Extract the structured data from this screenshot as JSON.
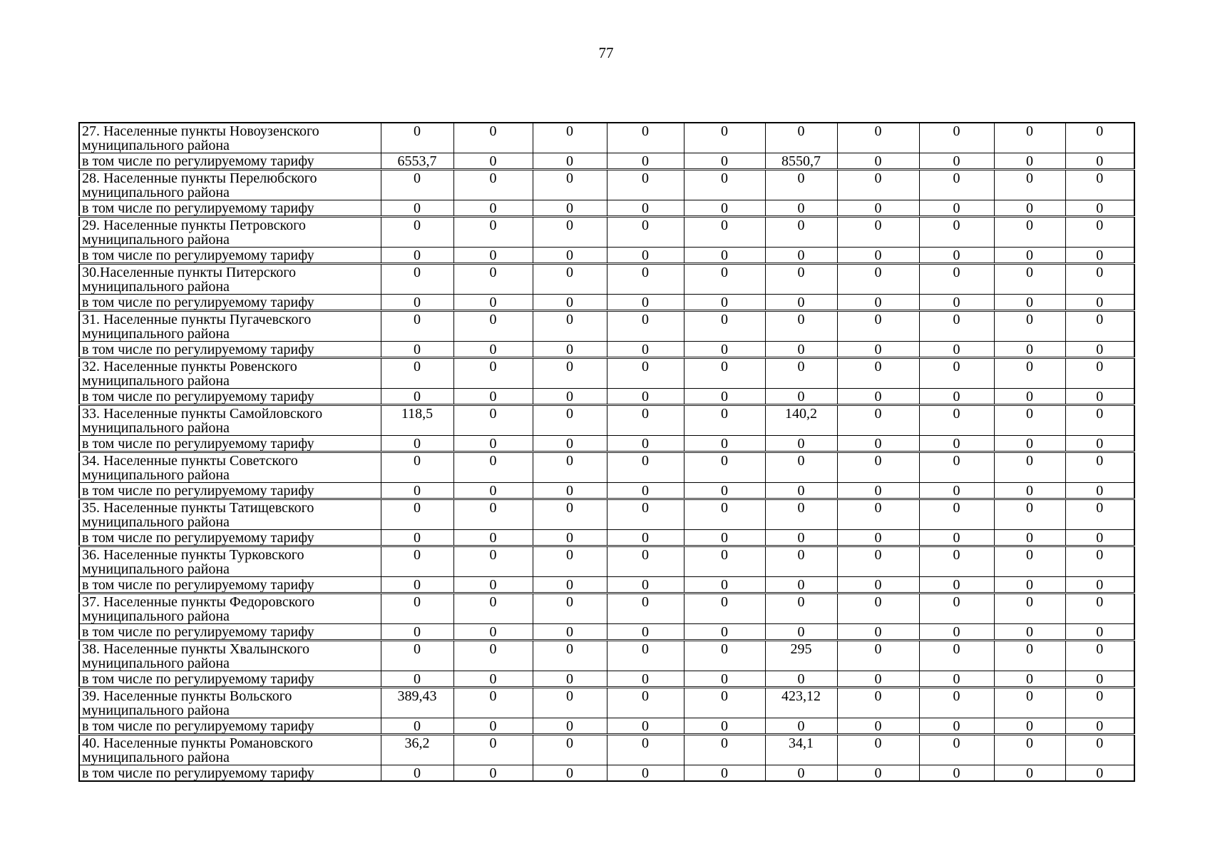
{
  "page": {
    "number": "77"
  },
  "table": {
    "columns_count": 10,
    "rows": [
      {
        "type": "district",
        "label": "27. Населенные пункты Новоузенского муниципального района",
        "values": [
          "0",
          "0",
          "0",
          "0",
          "0",
          "0",
          "0",
          "0",
          "0",
          "0"
        ]
      },
      {
        "type": "tariff",
        "label": "в том числе по регулируемому тарифу",
        "values": [
          "6553,7",
          "0",
          "0",
          "0",
          "0",
          "8550,7",
          "0",
          "0",
          "0",
          "0"
        ]
      },
      {
        "type": "district",
        "label": "28. Населенные пункты Перелюбского муниципального района",
        "values": [
          "0",
          "0",
          "0",
          "0",
          "0",
          "0",
          "0",
          "0",
          "0",
          "0"
        ]
      },
      {
        "type": "tariff",
        "label": "в том числе по регулируемому тарифу",
        "values": [
          "0",
          "0",
          "0",
          "0",
          "0",
          "0",
          "0",
          "0",
          "0",
          "0"
        ]
      },
      {
        "type": "district",
        "label": "29. Населенные пункты Петровского муниципального района",
        "values": [
          "0",
          "0",
          "0",
          "0",
          "0",
          "0",
          "0",
          "0",
          "0",
          "0"
        ]
      },
      {
        "type": "tariff",
        "label": "в том числе по регулируемому тарифу",
        "values": [
          "0",
          "0",
          "0",
          "0",
          "0",
          "0",
          "0",
          "0",
          "0",
          "0"
        ]
      },
      {
        "type": "district",
        "label": "30.Населенные пункты Питерского муниципального района",
        "values": [
          "0",
          "0",
          "0",
          "0",
          "0",
          "0",
          "0",
          "0",
          "0",
          "0"
        ]
      },
      {
        "type": "tariff",
        "label": "в том числе по регулируемому тарифу",
        "values": [
          "0",
          "0",
          "0",
          "0",
          "0",
          "0",
          "0",
          "0",
          "0",
          "0"
        ]
      },
      {
        "type": "district",
        "label": "31. Населенные пункты Пугачевского муниципального района",
        "values": [
          "0",
          "0",
          "0",
          "0",
          "0",
          "0",
          "0",
          "0",
          "0",
          "0"
        ]
      },
      {
        "type": "tariff",
        "label": "в том числе по регулируемому тарифу",
        "values": [
          "0",
          "0",
          "0",
          "0",
          "0",
          "0",
          "0",
          "0",
          "0",
          "0"
        ]
      },
      {
        "type": "district",
        "label": "32. Населенные пункты Ровенского муниципального района",
        "values": [
          "0",
          "0",
          "0",
          "0",
          "0",
          "0",
          "0",
          "0",
          "0",
          "0"
        ]
      },
      {
        "type": "tariff",
        "label": "в том числе по регулируемому тарифу",
        "values": [
          "0",
          "0",
          "0",
          "0",
          "0",
          "0",
          "0",
          "0",
          "0",
          "0"
        ]
      },
      {
        "type": "district",
        "label": "33. Населенные пункты Самойловского муниципального района",
        "values": [
          "118,5",
          "0",
          "0",
          "0",
          "0",
          "140,2",
          "0",
          "0",
          "0",
          "0"
        ]
      },
      {
        "type": "tariff",
        "label": "в том числе по регулируемому тарифу",
        "values": [
          "0",
          "0",
          "0",
          "0",
          "0",
          "0",
          "0",
          "0",
          "0",
          "0"
        ]
      },
      {
        "type": "district",
        "label": "34. Населенные пункты Советского муниципального района",
        "values": [
          "0",
          "0",
          "0",
          "0",
          "0",
          "0",
          "0",
          "0",
          "0",
          "0"
        ]
      },
      {
        "type": "tariff",
        "label": "в том числе по регулируемому тарифу",
        "values": [
          "0",
          "0",
          "0",
          "0",
          "0",
          "0",
          "0",
          "0",
          "0",
          "0"
        ]
      },
      {
        "type": "district",
        "label": "35. Населенные пункты Татищевского муниципального района",
        "values": [
          "0",
          "0",
          "0",
          "0",
          "0",
          "0",
          "0",
          "0",
          "0",
          "0"
        ]
      },
      {
        "type": "tariff",
        "label": "в том числе по регулируемому тарифу",
        "values": [
          "0",
          "0",
          "0",
          "0",
          "0",
          "0",
          "0",
          "0",
          "0",
          "0"
        ]
      },
      {
        "type": "district",
        "label": "36. Населенные пункты Турковского муниципального района",
        "values": [
          "0",
          "0",
          "0",
          "0",
          "0",
          "0",
          "0",
          "0",
          "0",
          "0"
        ]
      },
      {
        "type": "tariff",
        "label": "в том числе по регулируемому тарифу",
        "values": [
          "0",
          "0",
          "0",
          "0",
          "0",
          "0",
          "0",
          "0",
          "0",
          "0"
        ]
      },
      {
        "type": "district",
        "label": "37. Населенные пункты Федоровского муниципального района",
        "values": [
          "0",
          "0",
          "0",
          "0",
          "0",
          "0",
          "0",
          "0",
          "0",
          "0"
        ]
      },
      {
        "type": "tariff",
        "label": "в том числе по регулируемому тарифу",
        "values": [
          "0",
          "0",
          "0",
          "0",
          "0",
          "0",
          "0",
          "0",
          "0",
          "0"
        ]
      },
      {
        "type": "district",
        "label": "38. Населенные пункты Хвалынского муниципального района",
        "values": [
          "0",
          "0",
          "0",
          "0",
          "0",
          "295",
          "0",
          "0",
          "0",
          "0"
        ]
      },
      {
        "type": "tariff",
        "label": "в том числе по регулируемому тарифу",
        "values": [
          "0",
          "0",
          "0",
          "0",
          "0",
          "0",
          "0",
          "0",
          "0",
          "0"
        ]
      },
      {
        "type": "district",
        "label": "39. Населенные пункты Вольского муниципального района",
        "values": [
          "389,43",
          "0",
          "0",
          "0",
          "0",
          "423,12",
          "0",
          "0",
          "0",
          "0"
        ]
      },
      {
        "type": "tariff",
        "label": "в том числе по регулируемому тарифу",
        "values": [
          "0",
          "0",
          "0",
          "0",
          "0",
          "0",
          "0",
          "0",
          "0",
          "0"
        ]
      },
      {
        "type": "district",
        "label": "40. Населенные пункты Романовского муниципального района",
        "values": [
          "36,2",
          "0",
          "0",
          "0",
          "0",
          "34,1",
          "0",
          "0",
          "0",
          "0"
        ]
      },
      {
        "type": "tariff",
        "label": "в том числе по регулируемому тарифу",
        "values": [
          "0",
          "0",
          "0",
          "0",
          "0",
          "0",
          "0",
          "0",
          "0",
          "0"
        ]
      }
    ]
  }
}
